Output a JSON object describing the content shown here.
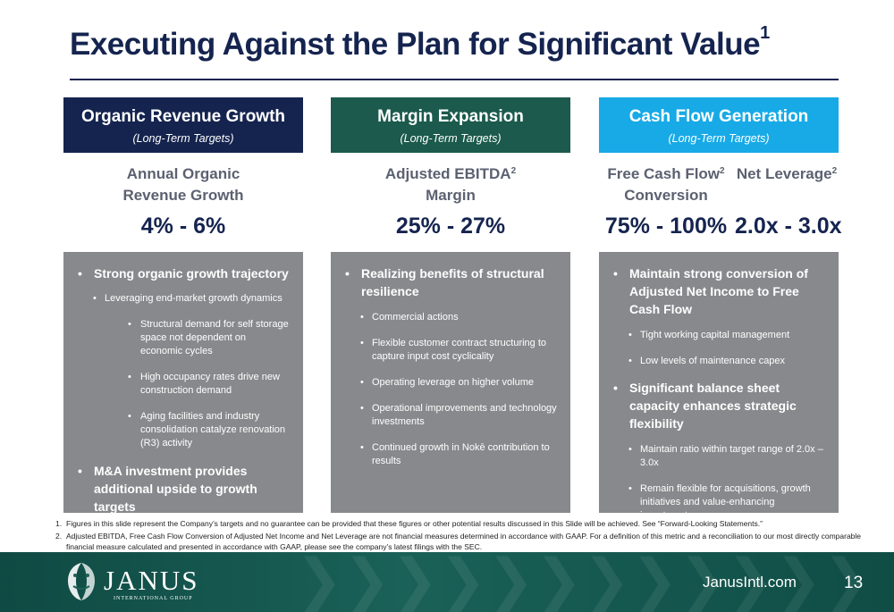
{
  "slide": {
    "title": "Executing Against the Plan for Significant Value",
    "title_footnote": "1"
  },
  "columns": [
    {
      "header": "Organic Revenue Growth",
      "subheader": "(Long-Term Targets)",
      "metric_label_line1": "Annual Organic",
      "metric_label_line2": "Revenue Growth",
      "value": "4% - 6%"
    },
    {
      "header": "Margin Expansion",
      "subheader": "(Long-Term Targets)",
      "metric_label_line1": "Adjusted EBITDA",
      "metric_label_line1_sup": "2",
      "metric_label_line2": "Margin",
      "value": "25% - 27%"
    },
    {
      "header": "Cash Flow Generation",
      "subheader": "(Long-Term Targets)",
      "metric_a_line1": "Free Cash Flow",
      "metric_a_sup": "2",
      "metric_a_line2": "Conversion",
      "metric_a_value": "75% - 100%",
      "metric_b_line1": "Net Leverage",
      "metric_b_sup": "2",
      "metric_b_value": "2.0x - 3.0x"
    }
  ],
  "panels": {
    "organic": {
      "b1": "Strong organic growth trajectory",
      "b1_1": "Leveraging end-market growth dynamics",
      "b1_1_1": "Structural demand for self storage space not dependent on economic cycles",
      "b1_1_2": "High occupancy rates drive new construction demand",
      "b1_1_3": "Aging facilities and industry consolidation catalyze renovation (R3) activity",
      "b2": "M&A investment provides additional upside to growth targets"
    },
    "margin": {
      "b1": "Realizing benefits of structural resilience",
      "items": [
        "Commercial actions",
        "Flexible customer contract structuring to capture input cost cyclicality",
        "Operating leverage on higher volume",
        "Operational improvements and technology investments",
        "Continued growth in Nokē contribution to results"
      ]
    },
    "cash": {
      "b1": "Maintain strong conversion of Adjusted Net Income to Free Cash Flow",
      "b1_items": [
        "Tight working capital management",
        "Low levels of maintenance capex"
      ],
      "b2": "Significant balance sheet capacity enhances strategic flexibility",
      "b2_items": [
        "Maintain ratio within target range of 2.0x – 3.0x",
        "Remain flexible for acquisitions, growth initiatives and value-enhancing investments"
      ]
    }
  },
  "footnotes": [
    {
      "num": "1.",
      "text": "Figures in this slide represent the Company’s targets and no guarantee can be provided that these figures or other potential results discussed in this Slide will be achieved. See “Forward-Looking Statements.”"
    },
    {
      "num": "2.",
      "text": "Adjusted EBITDA, Free Cash Flow Conversion of Adjusted Net Income and Net Leverage are not financial measures determined in accordance with GAAP. For a definition of this metric and a reconciliation to our most directly comparable financial measure calculated and presented in accordance with GAAP, please see the company’s latest filings with the SEC."
    }
  ],
  "footer": {
    "logo_word": "JANUS",
    "logo_sub": "INTERNATIONAL GROUP",
    "website": "JanusIntl.com",
    "page_number": "13"
  },
  "colors": {
    "navy": "#15244f",
    "green": "#1b5a4c",
    "cyan": "#17aae6",
    "panel_gray": "#87898c",
    "footer_teal": "#1a6158"
  }
}
